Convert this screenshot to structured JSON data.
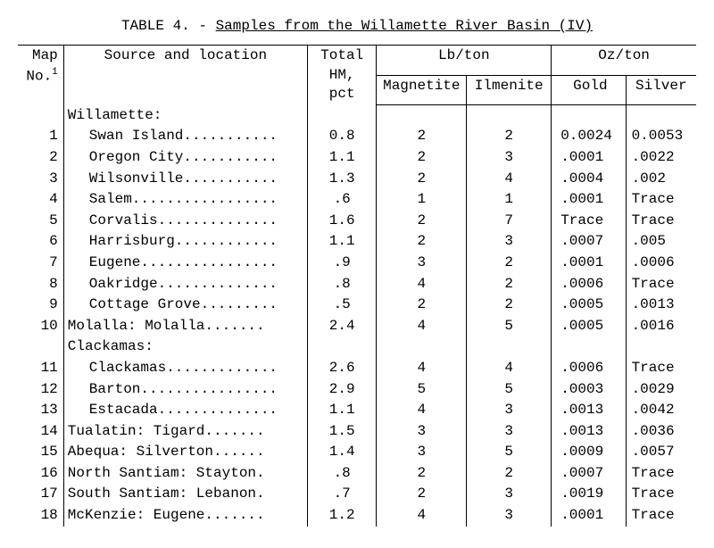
{
  "caption_prefix": "TABLE 4. - ",
  "caption_title": "Samples from the Willamette River Basin (IV)",
  "headers": {
    "map_l1": "Map",
    "map_l2": "No.",
    "map_sup": "1",
    "src": "Source and location",
    "hm_l1": "Total HM,",
    "hm_l2": "pct",
    "lbton": "Lb/ton",
    "mag": "Magnetite",
    "ilm": "Ilmenite",
    "ozton": "Oz/ton",
    "gold": "Gold",
    "silver": "Silver"
  },
  "rows": [
    {
      "type": "group",
      "label": "Willamette:"
    },
    {
      "type": "data",
      "indent": true,
      "map": "1",
      "src": "Swan Island...........",
      "hm": "0.8",
      "mag": "2",
      "ilm": "2",
      "au": "0.0024",
      "ag": "0.0053"
    },
    {
      "type": "data",
      "indent": true,
      "map": "2",
      "src": "Oregon City...........",
      "hm": "1.1",
      "mag": "2",
      "ilm": "3",
      "au": ".0001",
      "ag": ".0022"
    },
    {
      "type": "data",
      "indent": true,
      "map": "3",
      "src": "Wilsonville...........",
      "hm": "1.3",
      "mag": "2",
      "ilm": "4",
      "au": ".0004",
      "ag": ".002"
    },
    {
      "type": "data",
      "indent": true,
      "map": "4",
      "src": "Salem.................",
      "hm": ".6",
      "mag": "1",
      "ilm": "1",
      "au": ".0001",
      "ag": "Trace"
    },
    {
      "type": "data",
      "indent": true,
      "map": "5",
      "src": "Corvalis..............",
      "hm": "1.6",
      "mag": "2",
      "ilm": "7",
      "au": "Trace",
      "ag": "Trace"
    },
    {
      "type": "data",
      "indent": true,
      "map": "6",
      "src": "Harrisburg............",
      "hm": "1.1",
      "mag": "2",
      "ilm": "3",
      "au": ".0007",
      "ag": ".005"
    },
    {
      "type": "data",
      "indent": true,
      "map": "7",
      "src": "Eugene................",
      "hm": ".9",
      "mag": "3",
      "ilm": "2",
      "au": ".0001",
      "ag": ".0006"
    },
    {
      "type": "data",
      "indent": true,
      "map": "8",
      "src": "Oakridge..............",
      "hm": ".8",
      "mag": "4",
      "ilm": "2",
      "au": ".0006",
      "ag": "Trace"
    },
    {
      "type": "data",
      "indent": true,
      "map": "9",
      "src": "Cottage Grove.........",
      "hm": ".5",
      "mag": "2",
      "ilm": "2",
      "au": ".0005",
      "ag": ".0013"
    },
    {
      "type": "data",
      "indent": false,
      "map": "10",
      "src": "Molalla:  Molalla.......",
      "hm": "2.4",
      "mag": "4",
      "ilm": "5",
      "au": ".0005",
      "ag": ".0016"
    },
    {
      "type": "group",
      "label": "Clackamas:"
    },
    {
      "type": "data",
      "indent": true,
      "map": "11",
      "src": "Clackamas.............",
      "hm": "2.6",
      "mag": "4",
      "ilm": "4",
      "au": ".0006",
      "ag": "Trace"
    },
    {
      "type": "data",
      "indent": true,
      "map": "12",
      "src": "Barton................",
      "hm": "2.9",
      "mag": "5",
      "ilm": "5",
      "au": ".0003",
      "ag": ".0029"
    },
    {
      "type": "data",
      "indent": true,
      "map": "13",
      "src": "Estacada..............",
      "hm": "1.1",
      "mag": "4",
      "ilm": "3",
      "au": ".0013",
      "ag": ".0042"
    },
    {
      "type": "data",
      "indent": false,
      "map": "14",
      "src": "Tualatin:  Tigard.......",
      "hm": "1.5",
      "mag": "3",
      "ilm": "3",
      "au": ".0013",
      "ag": ".0036"
    },
    {
      "type": "data",
      "indent": false,
      "map": "15",
      "src": "Abequa:  Silverton......",
      "hm": "1.4",
      "mag": "3",
      "ilm": "5",
      "au": ".0009",
      "ag": ".0057"
    },
    {
      "type": "data",
      "indent": false,
      "map": "16",
      "src": "North Santiam:  Stayton.",
      "hm": ".8",
      "mag": "2",
      "ilm": "2",
      "au": ".0007",
      "ag": "Trace"
    },
    {
      "type": "data",
      "indent": false,
      "map": "17",
      "src": "South Santiam:  Lebanon.",
      "hm": ".7",
      "mag": "2",
      "ilm": "3",
      "au": ".0019",
      "ag": "Trace"
    },
    {
      "type": "data",
      "indent": false,
      "map": "18",
      "src": "McKenzie:  Eugene.......",
      "hm": "1.2",
      "mag": "4",
      "ilm": "3",
      "au": ".0001",
      "ag": "Trace"
    }
  ]
}
